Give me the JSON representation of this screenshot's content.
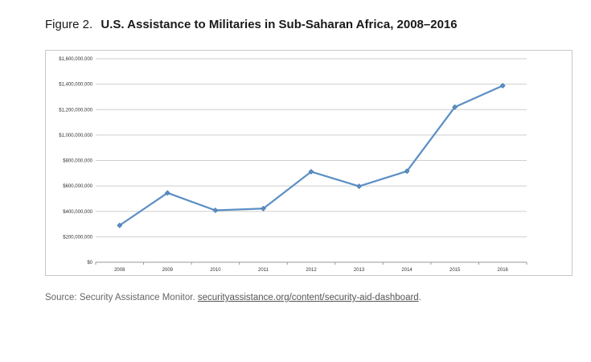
{
  "figure": {
    "number": "Figure 2.",
    "title": "U.S. Assistance to Militaries in Sub-Saharan Africa, 2008–2016"
  },
  "source": {
    "prefix": "Source: Security Assistance Monitor.",
    "link_text": "securityassistance.org/content/security-aid-dashboard",
    "suffix": "."
  },
  "chart_data": {
    "type": "line",
    "title": "",
    "xlabel": "",
    "ylabel": "",
    "categories": [
      "2008",
      "2009",
      "2010",
      "2011",
      "2012",
      "2013",
      "2014",
      "2015",
      "2016"
    ],
    "series": [
      {
        "values": [
          290000000,
          545000000,
          408000000,
          422000000,
          712000000,
          597000000,
          716000000,
          1220000000,
          1388000000
        ],
        "color": "#5b8fc4"
      }
    ],
    "ylim": [
      0,
      1600000000
    ],
    "y_ticks": [
      0,
      200000000,
      400000000,
      600000000,
      800000000,
      1000000000,
      1200000000,
      1400000000,
      1600000000
    ],
    "y_tick_labels": [
      "$0",
      "$200,000,000",
      "$400,000,000",
      "$600,000,000",
      "$800,000,000",
      "$1,000,000,000",
      "$1,200,000,000",
      "$1,400,000,000",
      "$1,600,000,000"
    ],
    "grid": true,
    "gridline_color": "#cfcfcf",
    "legend": "none"
  }
}
